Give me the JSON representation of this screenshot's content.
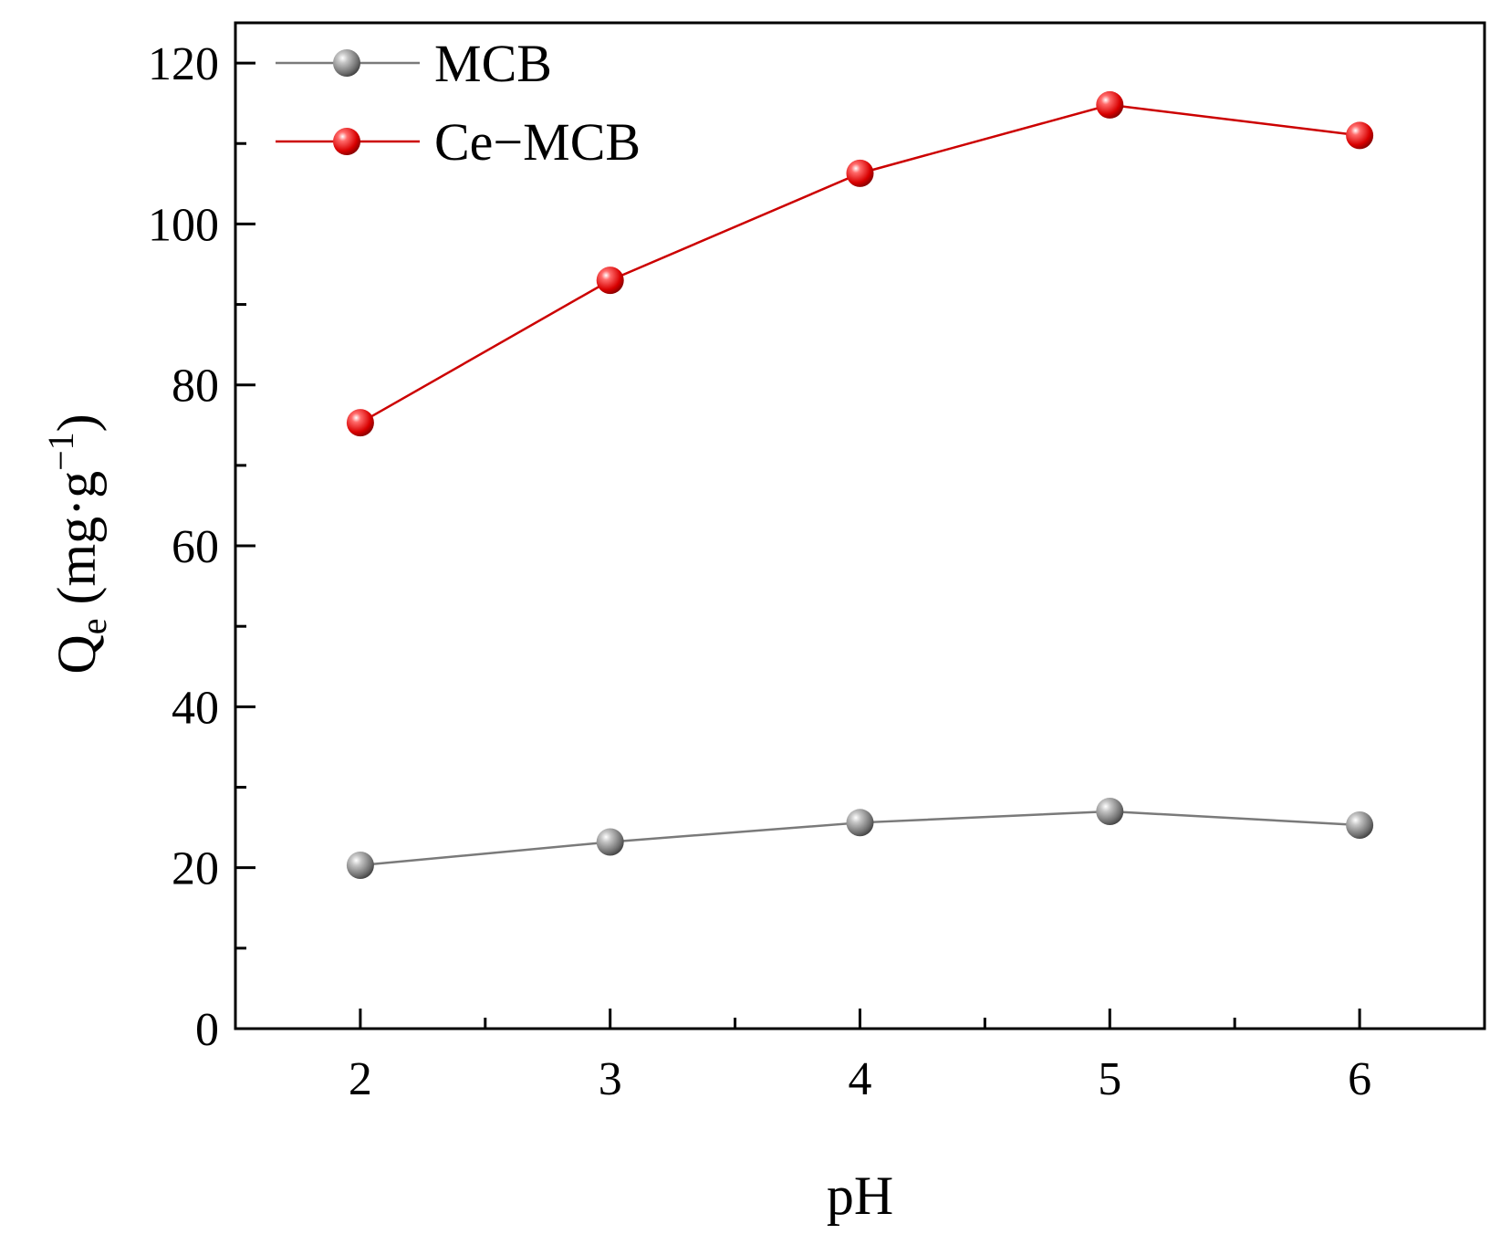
{
  "chart_data": {
    "type": "line",
    "title": "",
    "xlabel": "pH",
    "ylabel": {
      "main": "Q",
      "sub": "e",
      "unit_prefix": " (mg·g",
      "sup": "−1",
      "unit_suffix": ")"
    },
    "x": [
      2,
      3,
      4,
      5,
      6
    ],
    "xticks": [
      "2",
      "3",
      "4",
      "5",
      "6"
    ],
    "xlim": [
      1.5,
      6.5
    ],
    "ylim": [
      0,
      125
    ],
    "yticks": [
      "0",
      "20",
      "40",
      "60",
      "80",
      "100",
      "120"
    ],
    "grid": false,
    "legend_position": "top-left",
    "series": [
      {
        "name": "MCB",
        "color": "#7a7a7a",
        "values": [
          20.3,
          23.2,
          25.6,
          27.0,
          25.3
        ]
      },
      {
        "name": "Ce−MCB",
        "color": "#cc0000",
        "values": [
          75.3,
          93.0,
          106.3,
          114.8,
          111.0
        ]
      }
    ]
  }
}
